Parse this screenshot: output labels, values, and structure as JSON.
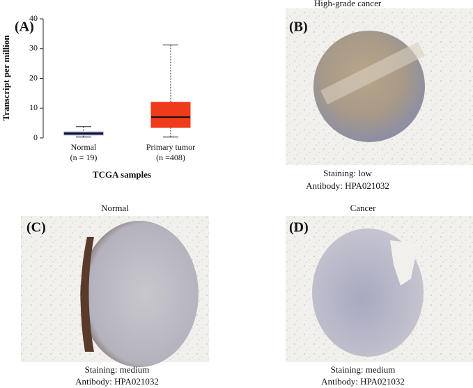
{
  "chart_data": {
    "type": "box",
    "panel_label": "(A)",
    "y_label": "Transcript per million",
    "x_label": "TCGA samples",
    "categories": [
      "Normal",
      "Primary tumor"
    ],
    "category_counts": [
      "(n = 19)",
      "(n =408)"
    ],
    "boxes": [
      {
        "whisker_low": 0.3,
        "q1": 1,
        "median": 1.5,
        "q3": 2,
        "whisker_high": 3.8,
        "color": "#2f3d9c"
      },
      {
        "whisker_low": 0.3,
        "q1": 3.5,
        "median": 7,
        "q3": 12,
        "whisker_high": 31.2,
        "color": "#ee3b1c"
      }
    ],
    "ylim": [
      0,
      40
    ],
    "yticks": [
      0,
      10,
      20,
      30,
      40
    ]
  },
  "panels": [
    {
      "label": "(B)",
      "title": "High-grade cancer",
      "staining": "Staining: low",
      "antibody": "Antibody: HPA021032"
    },
    {
      "label": "(C)",
      "title": "Normal",
      "staining": "Staining: medium",
      "antibody": "Antibody: HPA021032"
    },
    {
      "label": "(D)",
      "title": "Cancer",
      "staining": "Staining: medium",
      "antibody": "Antibody: HPA021032"
    }
  ]
}
